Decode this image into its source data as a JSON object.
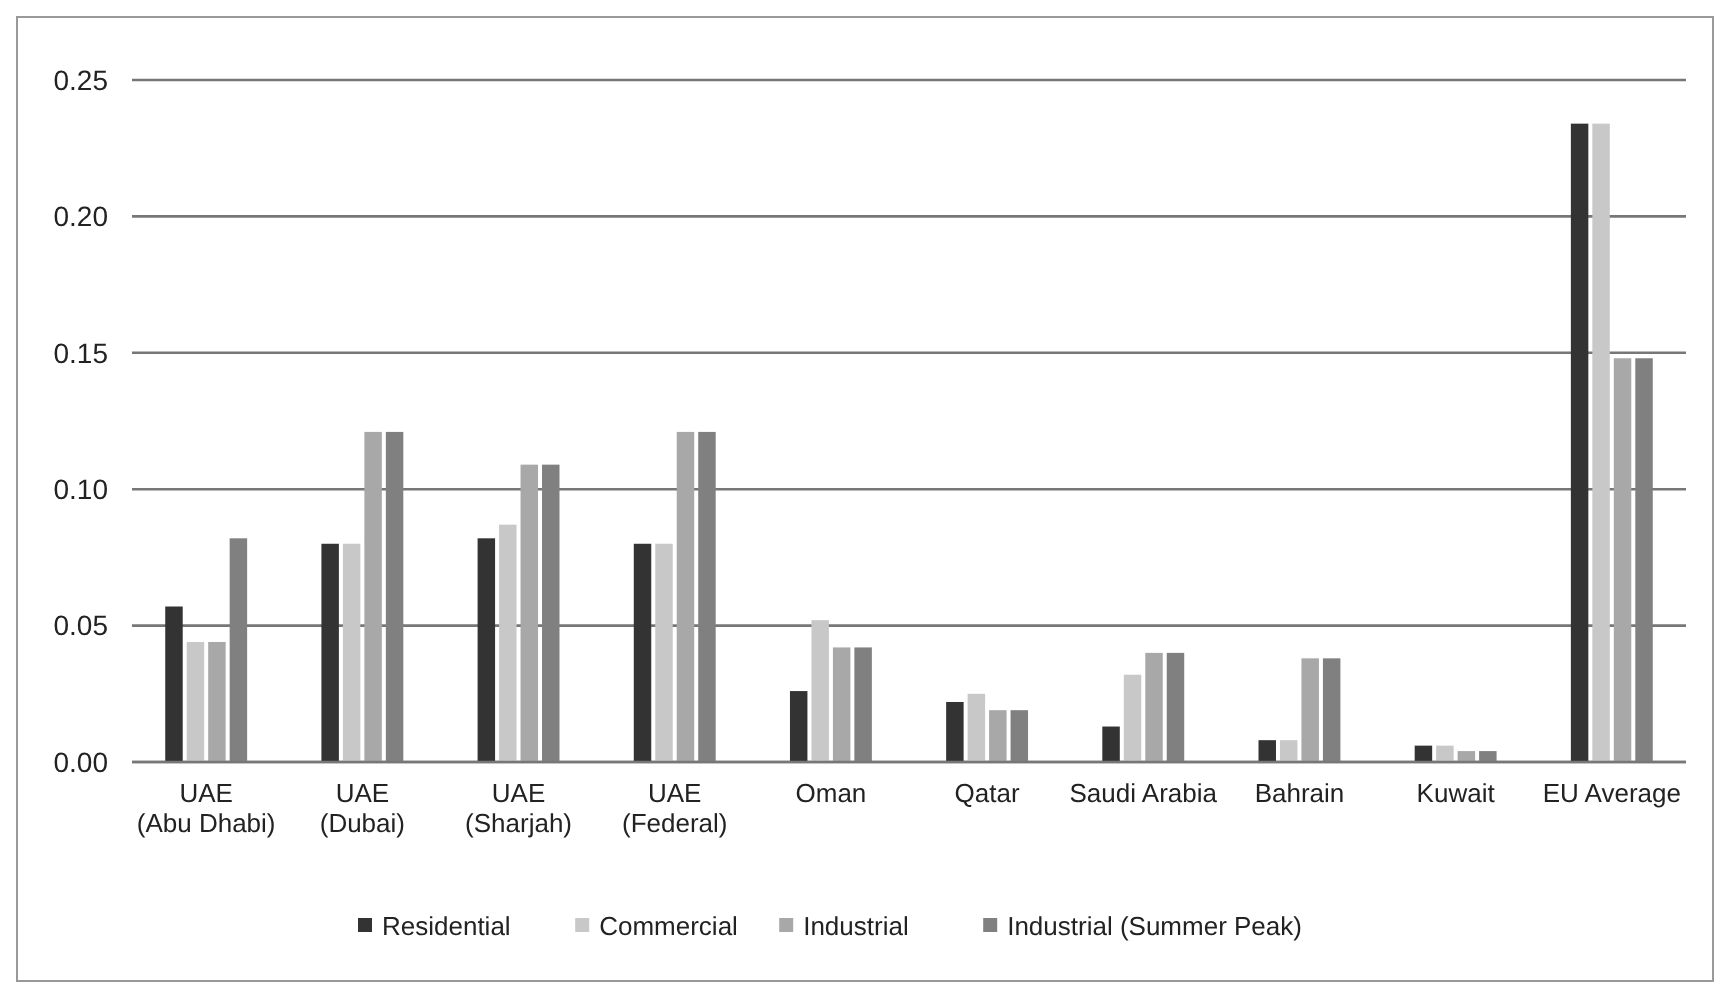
{
  "chart_data": {
    "type": "bar",
    "categories": [
      "UAE (Abu Dhabi)",
      "UAE (Dubai)",
      "UAE (Sharjah)",
      "UAE (Federal)",
      "Oman",
      "Qatar",
      "Saudi Arabia",
      "Bahrain",
      "Kuwait",
      "EU Average"
    ],
    "series": [
      {
        "name": "Residential",
        "color": "#333333",
        "values": [
          0.057,
          0.08,
          0.082,
          0.08,
          0.026,
          0.022,
          0.013,
          0.008,
          0.006,
          0.234
        ]
      },
      {
        "name": "Commercial",
        "color": "#c8c8c8",
        "values": [
          0.044,
          0.08,
          0.087,
          0.08,
          0.052,
          0.025,
          0.032,
          0.008,
          0.006,
          0.234
        ]
      },
      {
        "name": "Industrial",
        "color": "#a8a8a8",
        "values": [
          0.044,
          0.121,
          0.109,
          0.121,
          0.042,
          0.019,
          0.04,
          0.038,
          0.004,
          0.148
        ]
      },
      {
        "name": "Industrial (Summer Peak)",
        "color": "#808080",
        "values": [
          0.082,
          0.121,
          0.109,
          0.121,
          0.042,
          0.019,
          0.04,
          0.038,
          0.004,
          0.148
        ]
      }
    ],
    "ylim": [
      0,
      0.25
    ],
    "yticks": [
      {
        "value": 0,
        "label": "0.00"
      },
      {
        "value": 0.05,
        "label": "0.05"
      },
      {
        "value": 0.1,
        "label": "0.10"
      },
      {
        "value": 0.15,
        "label": "0.15"
      },
      {
        "value": 0.2,
        "label": "0.20"
      },
      {
        "value": 0.25,
        "label": "0.25"
      }
    ],
    "grid": "y",
    "legend": "bottom"
  }
}
